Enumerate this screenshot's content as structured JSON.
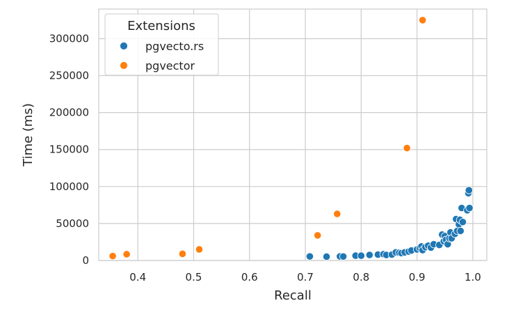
{
  "chart_data": {
    "type": "scatter",
    "title": "",
    "xlabel": "Recall",
    "ylabel": "Time (ms)",
    "xlim": [
      0.33,
      1.025
    ],
    "ylim": [
      0,
      340000
    ],
    "xticks": [
      0.4,
      0.5,
      0.6,
      0.7,
      0.8,
      0.9,
      1.0
    ],
    "xtick_labels": [
      "0.4",
      "0.5",
      "0.6",
      "0.7",
      "0.8",
      "0.9",
      "1.0"
    ],
    "yticks": [
      0,
      50000,
      100000,
      150000,
      200000,
      250000,
      300000
    ],
    "ytick_labels": [
      "0",
      "50000",
      "100000",
      "150000",
      "200000",
      "250000",
      "300000"
    ],
    "grid": true,
    "legend": {
      "title": "Extensions",
      "position": "top-left",
      "entries": [
        "pgvecto.rs",
        "pgvector"
      ]
    },
    "series": [
      {
        "name": "pgvecto.rs",
        "color": "#1f77b4",
        "points": [
          [
            0.708,
            5500
          ],
          [
            0.738,
            5200
          ],
          [
            0.762,
            5500
          ],
          [
            0.768,
            5400
          ],
          [
            0.79,
            6500
          ],
          [
            0.8,
            6500
          ],
          [
            0.815,
            7500
          ],
          [
            0.83,
            8000
          ],
          [
            0.84,
            8500
          ],
          [
            0.845,
            7500
          ],
          [
            0.855,
            8000
          ],
          [
            0.862,
            11000
          ],
          [
            0.868,
            10500
          ],
          [
            0.872,
            10000
          ],
          [
            0.878,
            11000
          ],
          [
            0.885,
            12000
          ],
          [
            0.89,
            13500
          ],
          [
            0.9,
            15000
          ],
          [
            0.905,
            17000
          ],
          [
            0.908,
            19000
          ],
          [
            0.91,
            14000
          ],
          [
            0.915,
            18000
          ],
          [
            0.92,
            20000
          ],
          [
            0.925,
            17500
          ],
          [
            0.93,
            22000
          ],
          [
            0.94,
            21000
          ],
          [
            0.945,
            35000
          ],
          [
            0.948,
            26000
          ],
          [
            0.95,
            33000
          ],
          [
            0.952,
            28000
          ],
          [
            0.955,
            22000
          ],
          [
            0.958,
            30000
          ],
          [
            0.96,
            38000
          ],
          [
            0.962,
            30000
          ],
          [
            0.968,
            36000
          ],
          [
            0.97,
            56000
          ],
          [
            0.972,
            40000
          ],
          [
            0.975,
            49000
          ],
          [
            0.977,
            55000
          ],
          [
            0.978,
            40000
          ],
          [
            0.98,
            71000
          ],
          [
            0.982,
            52000
          ],
          [
            0.99,
            68000
          ],
          [
            0.992,
            91000
          ],
          [
            0.993,
            95000
          ],
          [
            0.994,
            71000
          ]
        ]
      },
      {
        "name": "pgvector",
        "color": "#ff7f0e",
        "points": [
          [
            0.355,
            6000
          ],
          [
            0.38,
            8500
          ],
          [
            0.48,
            9000
          ],
          [
            0.51,
            15000
          ],
          [
            0.722,
            34000
          ],
          [
            0.757,
            63000
          ],
          [
            0.882,
            152000
          ],
          [
            0.91,
            325000
          ]
        ]
      }
    ]
  }
}
